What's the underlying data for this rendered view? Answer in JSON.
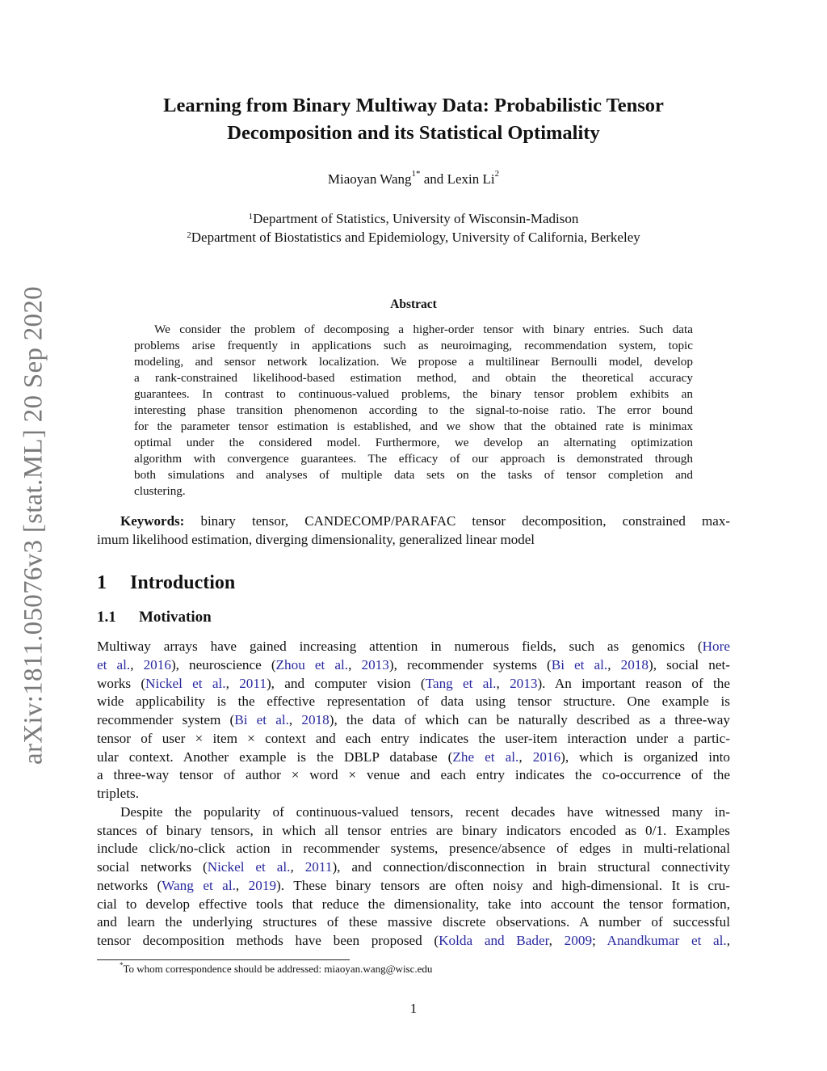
{
  "sidebar": {
    "arxiv_id": "arXiv:1811.05076v3  [stat.ML]  20 Sep 2020"
  },
  "title": {
    "line1": "Learning from Binary Multiway Data: Probabilistic Tensor",
    "line2": "Decomposition and its Statistical Optimality"
  },
  "authors": {
    "author1": "Miaoyan Wang",
    "author1_sup": "1*",
    "and": " and ",
    "author2": "Lexin Li",
    "author2_sup": "2"
  },
  "affiliations": [
    {
      "sup": "1",
      "text": "Department of Statistics, University of Wisconsin-Madison"
    },
    {
      "sup": "2",
      "text": "Department of Biostatistics and Epidemiology, University of California, Berkeley"
    }
  ],
  "abstract": {
    "heading": "Abstract",
    "lines": [
      "We consider the problem of decomposing a higher-order tensor with binary entries. Such data",
      "problems arise frequently in applications such as neuroimaging, recommendation system, topic",
      "modeling, and sensor network localization. We propose a multilinear Bernoulli model, develop",
      "a rank-constrained likelihood-based estimation method, and obtain the theoretical accuracy",
      "guarantees. In contrast to continuous-valued problems, the binary tensor problem exhibits an",
      "interesting phase transition phenomenon according to the signal-to-noise ratio. The error bound",
      "for the parameter tensor estimation is established, and we show that the obtained rate is minimax",
      "optimal under the considered model. Furthermore, we develop an alternating optimization",
      "algorithm with convergence guarantees. The efficacy of our approach is demonstrated through",
      "both simulations and analyses of multiple data sets on the tasks of tensor completion and",
      "clustering."
    ]
  },
  "keywords": {
    "label": "Keywords:",
    "line1": " binary tensor, CANDECOMP/PARAFAC tensor decomposition, constrained max-",
    "line2": "imum likelihood estimation, diverging dimensionality, generalized linear model"
  },
  "section": {
    "number": "1",
    "title": "Introduction"
  },
  "subsection": {
    "number": "1.1",
    "title": "Motivation"
  },
  "paragraphs": [
    {
      "lines": [
        [
          {
            "t": "Multiway arrays have gained increasing attention in numerous fields, such as genomics ("
          },
          {
            "t": "Hore",
            "l": true
          }
        ],
        [
          {
            "t": "et al.",
            "l": true
          },
          {
            "t": ", "
          },
          {
            "t": "2016",
            "l": true
          },
          {
            "t": "), neuroscience ("
          },
          {
            "t": "Zhou et al.",
            "l": true
          },
          {
            "t": ", "
          },
          {
            "t": "2013",
            "l": true
          },
          {
            "t": "), recommender systems ("
          },
          {
            "t": "Bi et al.",
            "l": true
          },
          {
            "t": ", "
          },
          {
            "t": "2018",
            "l": true
          },
          {
            "t": "), social net-"
          }
        ],
        [
          {
            "t": "works ("
          },
          {
            "t": "Nickel et al.",
            "l": true
          },
          {
            "t": ", "
          },
          {
            "t": "2011",
            "l": true
          },
          {
            "t": "), and computer vision ("
          },
          {
            "t": "Tang et al.",
            "l": true
          },
          {
            "t": ", "
          },
          {
            "t": "2013",
            "l": true
          },
          {
            "t": "). An important reason of the"
          }
        ],
        [
          {
            "t": "wide applicability is the effective representation of data using tensor structure. One example is"
          }
        ],
        [
          {
            "t": "recommender system ("
          },
          {
            "t": "Bi et al.",
            "l": true
          },
          {
            "t": ", "
          },
          {
            "t": "2018",
            "l": true
          },
          {
            "t": "), the data of which can be naturally described as a three-way"
          }
        ],
        [
          {
            "t": "tensor of user × item × context and each entry indicates the user-item interaction under a partic-"
          }
        ],
        [
          {
            "t": "ular context. Another example is the DBLP database ("
          },
          {
            "t": "Zhe et al.",
            "l": true
          },
          {
            "t": ", "
          },
          {
            "t": "2016",
            "l": true
          },
          {
            "t": "), which is organized into"
          }
        ],
        [
          {
            "t": "a three-way tensor of author × word × venue and each entry indicates the co-occurrence of the"
          }
        ],
        [
          {
            "t": "triplets."
          }
        ]
      ]
    },
    {
      "lines": [
        [
          {
            "t": "Despite the popularity of continuous-valued tensors, recent decades have witnessed many in-"
          }
        ],
        [
          {
            "t": "stances of binary tensors, in which all tensor entries are binary indicators encoded as 0/1. Examples"
          }
        ],
        [
          {
            "t": "include click/no-click action in recommender systems, presence/absence of edges in multi-relational"
          }
        ],
        [
          {
            "t": "social networks ("
          },
          {
            "t": "Nickel et al.",
            "l": true
          },
          {
            "t": ", "
          },
          {
            "t": "2011",
            "l": true
          },
          {
            "t": "), and connection/disconnection in brain structural connectivity"
          }
        ],
        [
          {
            "t": "networks ("
          },
          {
            "t": "Wang et al.",
            "l": true
          },
          {
            "t": ", "
          },
          {
            "t": "2019",
            "l": true
          },
          {
            "t": "). These binary tensors are often noisy and high-dimensional. It is cru-"
          }
        ],
        [
          {
            "t": "cial to develop effective tools that reduce the dimensionality, take into account the tensor formation,"
          }
        ],
        [
          {
            "t": "and learn the underlying structures of these massive discrete observations. A number of successful"
          }
        ],
        [
          {
            "t": "tensor decomposition methods have been proposed ("
          },
          {
            "t": "Kolda and Bader",
            "l": true
          },
          {
            "t": ", "
          },
          {
            "t": "2009",
            "l": true
          },
          {
            "t": "; "
          },
          {
            "t": "Anandkumar et al.",
            "l": true
          },
          {
            "t": ","
          }
        ]
      ]
    }
  ],
  "footnote": {
    "mark": "*",
    "text": "To whom correspondence should be addressed: miaoyan.wang@wisc.edu"
  },
  "page_number": "1",
  "colors": {
    "link": "#2a2aa0",
    "sidebar": "#7a7a7a"
  }
}
